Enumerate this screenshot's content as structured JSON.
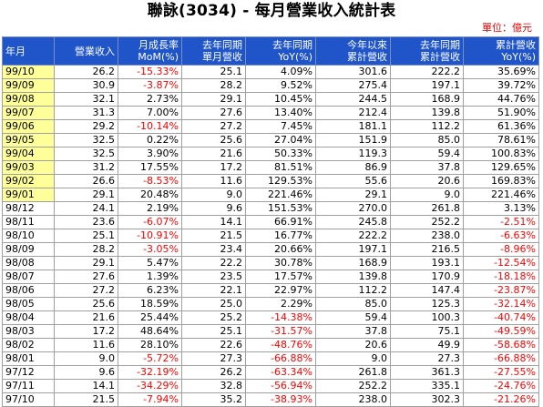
{
  "title": "聯詠(3034) - 每月營業收入統計表",
  "unit": "單位：億元",
  "headers": [
    [
      "年月",
      ""
    ],
    [
      "營業收入",
      ""
    ],
    [
      "月成長率",
      "MoM(%)"
    ],
    [
      "去年同期",
      "單月營收"
    ],
    [
      "去年同期",
      "YoY(%)"
    ],
    [
      "今年以來",
      "累計營收"
    ],
    [
      "去年同期",
      "累計營收"
    ],
    [
      "累計營收",
      "YoY(%)"
    ]
  ],
  "highlight_rows": 10,
  "rows": [
    [
      "99/10",
      "26.2",
      "-15.33%",
      "25.1",
      "4.09%",
      "301.6",
      "222.2",
      "35.69%"
    ],
    [
      "99/09",
      "30.9",
      "-3.87%",
      "28.2",
      "9.52%",
      "275.4",
      "197.1",
      "39.72%"
    ],
    [
      "99/08",
      "32.1",
      "2.73%",
      "29.1",
      "10.45%",
      "244.5",
      "168.9",
      "44.76%"
    ],
    [
      "99/07",
      "31.3",
      "7.00%",
      "27.6",
      "13.40%",
      "212.4",
      "139.8",
      "51.90%"
    ],
    [
      "99/06",
      "29.2",
      "-10.14%",
      "27.2",
      "7.45%",
      "181.1",
      "112.2",
      "61.36%"
    ],
    [
      "99/05",
      "32.5",
      "0.22%",
      "25.6",
      "27.04%",
      "151.9",
      "85.0",
      "78.61%"
    ],
    [
      "99/04",
      "32.5",
      "3.90%",
      "21.6",
      "50.33%",
      "119.3",
      "59.4",
      "100.83%"
    ],
    [
      "99/03",
      "31.2",
      "17.55%",
      "17.2",
      "81.51%",
      "86.9",
      "37.8",
      "129.65%"
    ],
    [
      "99/02",
      "26.6",
      "-8.53%",
      "11.6",
      "129.53%",
      "55.6",
      "20.6",
      "169.83%"
    ],
    [
      "99/01",
      "29.1",
      "20.48%",
      "9.0",
      "221.46%",
      "29.1",
      "9.0",
      "221.46%"
    ],
    [
      "98/12",
      "24.1",
      "2.19%",
      "9.6",
      "151.53%",
      "270.0",
      "261.8",
      "3.13%"
    ],
    [
      "98/11",
      "23.6",
      "-6.07%",
      "14.1",
      "66.91%",
      "245.8",
      "252.2",
      "-2.51%"
    ],
    [
      "98/10",
      "25.1",
      "-10.91%",
      "21.5",
      "16.77%",
      "222.2",
      "238.0",
      "-6.63%"
    ],
    [
      "98/09",
      "28.2",
      "-3.05%",
      "23.4",
      "20.66%",
      "197.1",
      "216.5",
      "-8.96%"
    ],
    [
      "98/08",
      "29.1",
      "5.47%",
      "22.2",
      "30.78%",
      "168.9",
      "193.1",
      "-12.54%"
    ],
    [
      "98/07",
      "27.6",
      "1.39%",
      "23.5",
      "17.57%",
      "139.8",
      "170.9",
      "-18.18%"
    ],
    [
      "98/06",
      "27.2",
      "6.23%",
      "22.1",
      "22.97%",
      "112.2",
      "147.4",
      "-23.87%"
    ],
    [
      "98/05",
      "25.6",
      "18.59%",
      "25.0",
      "2.29%",
      "85.0",
      "125.3",
      "-32.14%"
    ],
    [
      "98/04",
      "21.6",
      "25.44%",
      "25.2",
      "-14.38%",
      "59.4",
      "100.3",
      "-40.74%"
    ],
    [
      "98/03",
      "17.2",
      "48.64%",
      "25.1",
      "-31.57%",
      "37.8",
      "75.1",
      "-49.59%"
    ],
    [
      "98/02",
      "11.6",
      "28.10%",
      "22.6",
      "-48.76%",
      "20.6",
      "49.9",
      "-58.68%"
    ],
    [
      "98/01",
      "9.0",
      "-5.72%",
      "27.3",
      "-66.88%",
      "9.0",
      "27.3",
      "-66.88%"
    ],
    [
      "97/12",
      "9.6",
      "-32.19%",
      "26.2",
      "-63.34%",
      "261.8",
      "361.3",
      "-27.55%"
    ],
    [
      "97/11",
      "14.1",
      "-34.29%",
      "32.8",
      "-56.94%",
      "252.2",
      "335.1",
      "-24.76%"
    ],
    [
      "97/10",
      "21.5",
      "-7.94%",
      "35.2",
      "-38.93%",
      "238.0",
      "302.3",
      "-21.26%"
    ]
  ]
}
